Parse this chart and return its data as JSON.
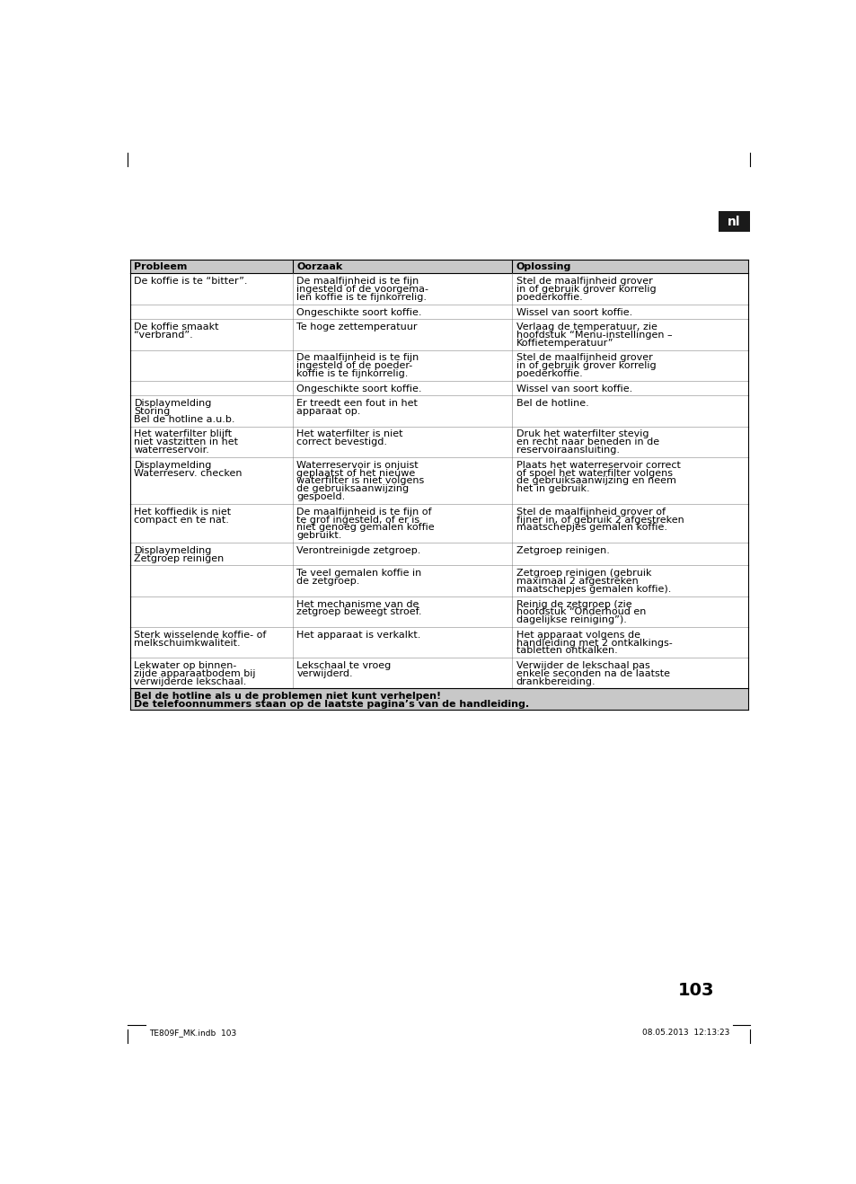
{
  "page_number": "103",
  "footer_left": "TE809F_MK.indb  103",
  "footer_right": "08.05.2013  12:13:23",
  "lang_label": "nl",
  "header_col1": "Probleem",
  "header_col2": "Oorzaak",
  "header_col3": "Oplossing",
  "header_bg": "#c8c8c8",
  "footer_note_bg": "#c8c8c8",
  "footer_note1": "Bel de hotline als u de problemen niet kunt verhelpen!",
  "footer_note2": "De telefoonnummers staan op de laatste pagina’s van de handleiding.",
  "table_rows": [
    {
      "col1": "De koffie is te “bitter”.",
      "col2": "De maalfijnheid is te fijn\ningesteld of de voorgema-\nlen koffie is te fijnkorrelig.",
      "col3": "Stel de maalfijnheid grover\nin of gebruik grover korrelig\npoederkoffie."
    },
    {
      "col1": "",
      "col2": "Ongeschikte soort koffie.",
      "col3": "Wissel van soort koffie."
    },
    {
      "col1": "De koffie smaakt\n“verbrand”.",
      "col2": "Te hoge zettemperatuur",
      "col3": "Verlaag de temperatuur, zie\nhoofdstuk “Menu-instellingen –\nKoffietemperatuur”"
    },
    {
      "col1": "",
      "col2": "De maalfijnheid is te fijn\ningesteld of de poeder-\nkoffie is te fijnkorrelig.",
      "col3": "Stel de maalfijnheid grover\nin of gebruik grover korrelig\npoederkoffie."
    },
    {
      "col1": "",
      "col2": "Ongeschikte soort koffie.",
      "col3": "Wissel van soort koffie."
    },
    {
      "col1": "Displaymelding\nStoring\nBel de hotline a.u.b.",
      "col2": "Er treedt een fout in het\napparaat op.",
      "col3": "Bel de hotline."
    },
    {
      "col1": "Het waterfilter blijft\nniet vastzitten in het\nwaterreservoir.",
      "col2": "Het waterfilter is niet\ncorrect bevestigd.",
      "col3": "Druk het waterfilter stevig\nen recht naar beneden in de\nreservoiraansluiting."
    },
    {
      "col1": "Displaymelding\nWaterreserv. checken",
      "col2": "Waterreservoir is onjuist\ngeplaatst of het nieuwe\nwaterfilter is niet volgens\nde gebruiksaanwijzing\ngespoeld.",
      "col3": "Plaats het waterreservoir correct\nof spoel het waterfilter volgens\nde gebruiksaanwijzing en neem\nhet in gebruik."
    },
    {
      "col1": "Het koffiedik is niet\ncompact en te nat.",
      "col2": "De maalfijnheid is te fijn of\nte grof ingesteld, of er is\nniet genoeg gemalen koffie\ngebruikt.",
      "col3": "Stel de maalfijnheid grover of\nfijner in, of gebruik 2 afgestreken\nmaatschepjes gemalen koffie."
    },
    {
      "col1": "Displaymelding\nZetgroep reinigen",
      "col2": "Verontreinigde zetgroep.",
      "col3": "Zetgroep reinigen."
    },
    {
      "col1": "",
      "col2": "Te veel gemalen koffie in\nde zetgroep.",
      "col3": "Zetgroep reinigen (gebruik\nmaximaal 2 afgestreken\nmaatschepjes gemalen koffie)."
    },
    {
      "col1": "",
      "col2": "Het mechanisme van de\nzetgroep beweegt stroef.",
      "col3": "Reinig de zetgroep (zie\nhoofdstuk “Onderhoud en\ndagelijkse reiniging”)."
    },
    {
      "col1": "Sterk wisselende koffie- of\nmelkschuimkwaliteit.",
      "col2": "Het apparaat is verkalkt.",
      "col3": "Het apparaat volgens de\nhandleiding met 2 ontkalkings-\ntabletten ontkalken."
    },
    {
      "col1": "Lekwater op binnen-\nzijde apparaatbodem bij\nverwijderde lekschaal.",
      "col2": "Lekschaal te vroeg\nverwijderd.",
      "col3": "Verwijder de lekschaal pas\nenkele seconden na de laatste\ndrankbereiding."
    }
  ]
}
